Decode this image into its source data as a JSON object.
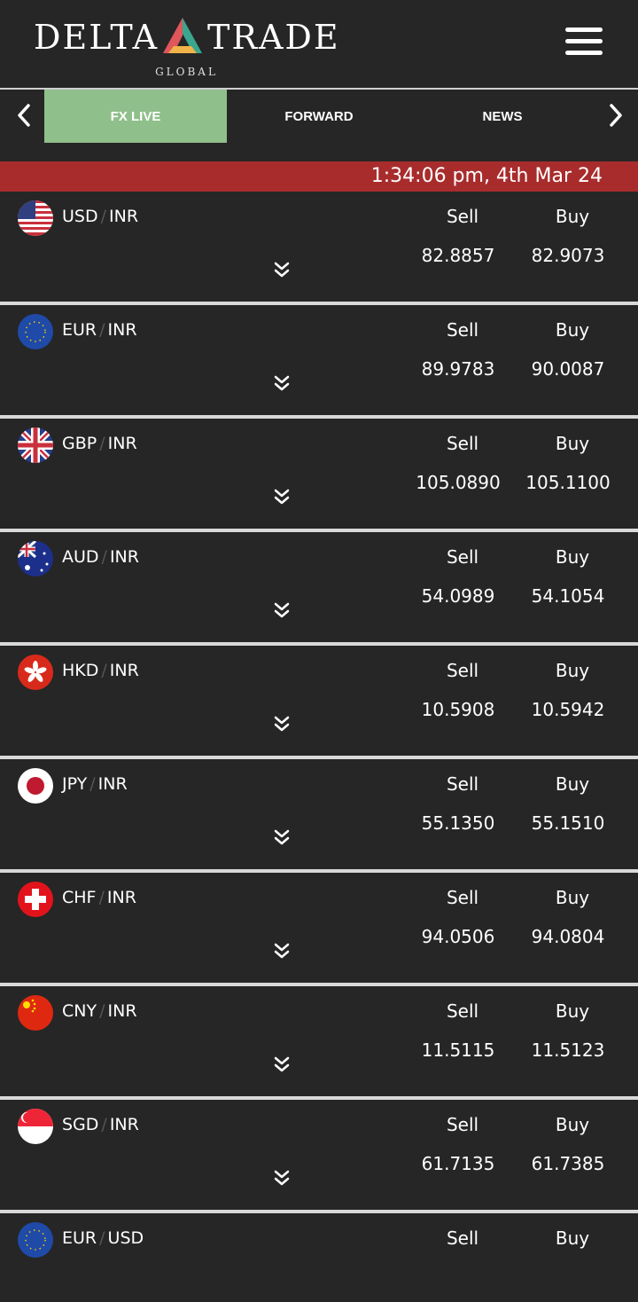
{
  "brand": {
    "left_word": "DELTA",
    "right_word": "TRADE",
    "sub": "GLOBAL"
  },
  "tabs": [
    {
      "label": "FX LIVE",
      "active": true
    },
    {
      "label": "FORWARD",
      "active": false
    },
    {
      "label": "NEWS",
      "active": false
    }
  ],
  "timestamp": "1:34:06 pm, 4th Mar 24",
  "colors": {
    "accent_active_tab": "#8fbf8a",
    "time_bar": "#a82c2c",
    "background": "#262626"
  },
  "sell_label": "Sell",
  "buy_label": "Buy",
  "pairs": [
    {
      "base": "USD",
      "quote": "INR",
      "sell": "82.8857",
      "buy": "82.9073",
      "flag": "us-flag-icon"
    },
    {
      "base": "EUR",
      "quote": "INR",
      "sell": "89.9783",
      "buy": "90.0087",
      "flag": "eu-flag-icon"
    },
    {
      "base": "GBP",
      "quote": "INR",
      "sell": "105.0890",
      "buy": "105.1100",
      "flag": "uk-flag-icon"
    },
    {
      "base": "AUD",
      "quote": "INR",
      "sell": "54.0989",
      "buy": "54.1054",
      "flag": "au-flag-icon"
    },
    {
      "base": "HKD",
      "quote": "INR",
      "sell": "10.5908",
      "buy": "10.5942",
      "flag": "hk-flag-icon"
    },
    {
      "base": "JPY",
      "quote": "INR",
      "sell": "55.1350",
      "buy": "55.1510",
      "flag": "jp-flag-icon"
    },
    {
      "base": "CHF",
      "quote": "INR",
      "sell": "94.0506",
      "buy": "94.0804",
      "flag": "ch-flag-icon"
    },
    {
      "base": "CNY",
      "quote": "INR",
      "sell": "11.5115",
      "buy": "11.5123",
      "flag": "cn-flag-icon"
    },
    {
      "base": "SGD",
      "quote": "INR",
      "sell": "61.7135",
      "buy": "61.7385",
      "flag": "sg-flag-icon"
    },
    {
      "base": "EUR",
      "quote": "USD",
      "sell": "",
      "buy": "",
      "flag": "eu-flag-icon"
    }
  ]
}
